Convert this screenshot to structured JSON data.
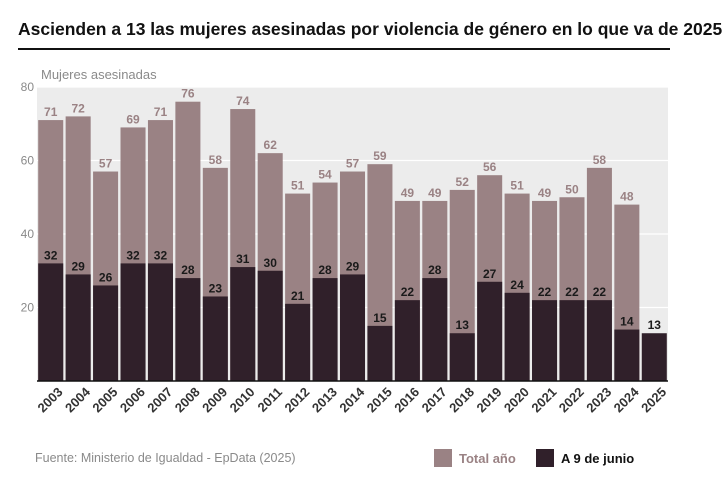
{
  "title": "Ascienden a 13 las mujeres asesinadas por violencia de género en lo que va de 2025",
  "source": "Fuente: Ministerio de Igualdad - EpData (2025)",
  "colors": {
    "total": "#9a8284",
    "june": "#30202a",
    "plot_bg": "#ececec",
    "grid": "#ffffff"
  },
  "chart_data": {
    "type": "bar",
    "title": "Ascienden a 13 las mujeres asesinadas por violencia de género en lo que va de 2025",
    "ylabel": "Mujeres asesinadas",
    "xlabel": "",
    "ylim": [
      0,
      80
    ],
    "yticks": [
      20,
      40,
      60,
      80
    ],
    "legend_position": "bottom",
    "categories": [
      "2003",
      "2004",
      "2005",
      "2006",
      "2007",
      "2008",
      "2009",
      "2010",
      "2011",
      "2012",
      "2013",
      "2014",
      "2015",
      "2016",
      "2017",
      "2018",
      "2019",
      "2020",
      "2021",
      "2022",
      "2023",
      "2024",
      "2025"
    ],
    "series": [
      {
        "name": "Total año",
        "values": [
          71,
          72,
          57,
          69,
          71,
          76,
          58,
          74,
          62,
          51,
          54,
          57,
          59,
          49,
          49,
          52,
          56,
          51,
          49,
          50,
          58,
          48,
          null
        ]
      },
      {
        "name": "A 9 de junio",
        "values": [
          32,
          29,
          26,
          32,
          32,
          28,
          23,
          31,
          30,
          21,
          28,
          29,
          15,
          22,
          28,
          13,
          27,
          24,
          22,
          22,
          22,
          14,
          13
        ]
      }
    ]
  }
}
